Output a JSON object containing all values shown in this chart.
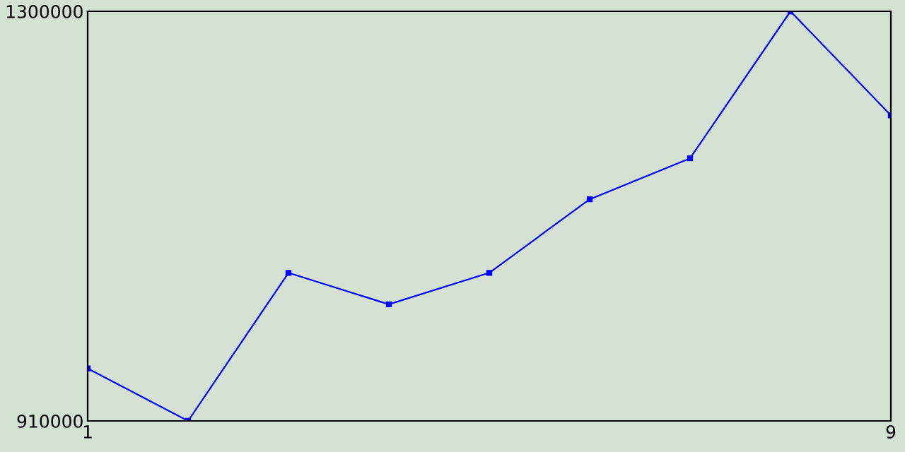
{
  "chart_data": {
    "type": "line",
    "x": [
      1,
      2,
      3,
      4,
      5,
      6,
      7,
      8,
      9
    ],
    "series": [
      {
        "color": "#0000ff",
        "values": [
          960000,
          910000,
          1051000,
          1021000,
          1051000,
          1121000,
          1160000,
          1300000,
          1201000
        ]
      }
    ],
    "xlim": [
      1,
      9
    ],
    "xticks": [
      1,
      9
    ],
    "ylim": [
      910000,
      1300000
    ],
    "yticks": [
      910000,
      1300000
    ],
    "marker": "square",
    "line_style": "solid",
    "grid": false
  }
}
